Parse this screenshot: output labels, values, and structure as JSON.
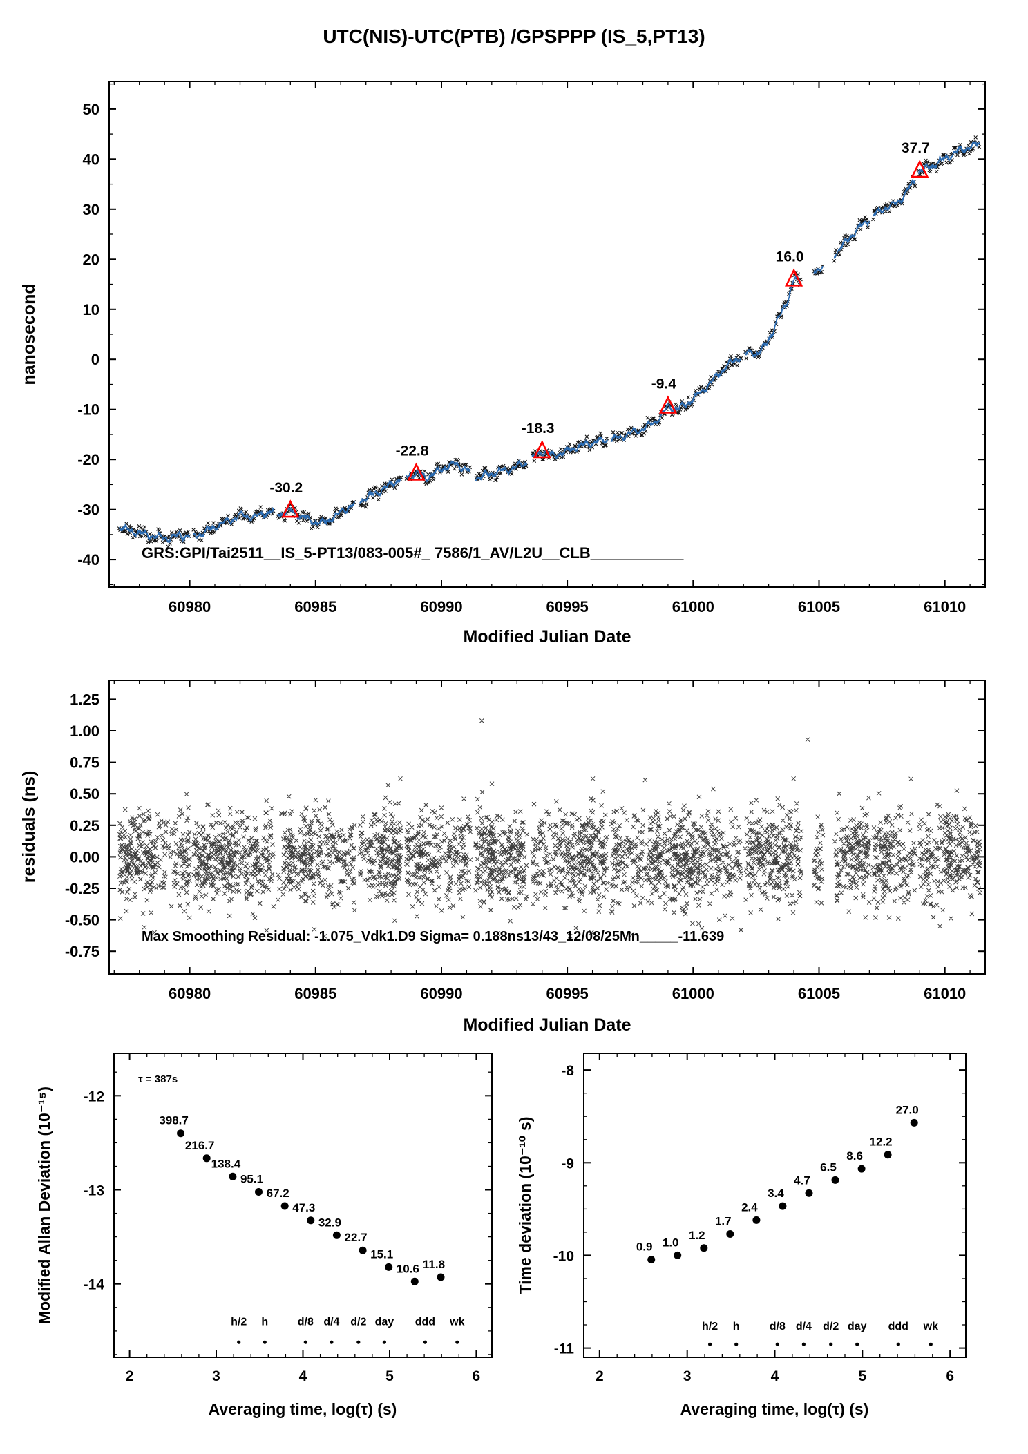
{
  "title": "UTC(NIS)-UTC(PTB)  /GPSPPP  (IS_5,PT13)",
  "chart_data": [
    {
      "type": "line",
      "panel": "top-time-difference",
      "xlabel": "Modified Julian Date",
      "ylabel": "nanosecond",
      "xlim": [
        60976.8,
        61011.6
      ],
      "ylim": [
        -45.5,
        55.5
      ],
      "xticks": [
        60980,
        60985,
        60990,
        60995,
        61000,
        61005,
        61010
      ],
      "yticks": [
        -40,
        -30,
        -20,
        -10,
        0,
        10,
        20,
        30,
        40,
        50
      ],
      "line_color": "#2b6cb3",
      "marker_color": "#111111",
      "annotation": "GRS:GPI/Tai2511__IS_5-PT13/083-005#_  7586/1_AV/L2U__CLB___________",
      "series_anchors": [
        [
          60977.2,
          -33.5
        ],
        [
          60977.6,
          -34.2
        ],
        [
          60978.1,
          -34.8
        ],
        [
          60978.6,
          -35.3
        ],
        [
          60979.1,
          -35.8
        ],
        [
          60979.6,
          -35.1
        ],
        [
          60980.1,
          -35.5
        ],
        [
          60980.6,
          -34.5
        ],
        [
          60981.1,
          -33.2
        ],
        [
          60981.6,
          -32.1
        ],
        [
          60982.1,
          -31.1
        ],
        [
          60982.5,
          -31.6
        ],
        [
          60982.9,
          -30.9
        ],
        [
          60983.3,
          -30.4
        ],
        [
          60983.7,
          -30.9
        ],
        [
          60984.0,
          -30.2
        ],
        [
          60984.4,
          -31.3
        ],
        [
          60984.9,
          -32.4
        ],
        [
          60985.3,
          -32.7
        ],
        [
          60985.8,
          -31.3
        ],
        [
          60986.3,
          -29.6
        ],
        [
          60986.8,
          -28.2
        ],
        [
          60987.3,
          -27.0
        ],
        [
          60987.8,
          -25.6
        ],
        [
          60988.2,
          -24.3
        ],
        [
          60988.6,
          -23.3
        ],
        [
          60989.0,
          -22.8
        ],
        [
          60989.4,
          -23.6
        ],
        [
          60989.8,
          -22.6
        ],
        [
          60990.2,
          -21.4
        ],
        [
          60990.6,
          -20.9
        ],
        [
          60991.0,
          -22.0
        ],
        [
          60991.4,
          -23.6
        ],
        [
          60991.8,
          -23.1
        ],
        [
          60992.3,
          -22.4
        ],
        [
          60992.8,
          -21.8
        ],
        [
          60993.3,
          -20.9
        ],
        [
          60993.7,
          -19.6
        ],
        [
          60994.0,
          -18.3
        ],
        [
          60994.4,
          -19.2
        ],
        [
          60994.8,
          -18.7
        ],
        [
          60995.3,
          -17.6
        ],
        [
          60995.8,
          -16.9
        ],
        [
          60996.3,
          -16.3
        ],
        [
          60996.8,
          -16.0
        ],
        [
          60997.3,
          -15.2
        ],
        [
          60997.8,
          -14.3
        ],
        [
          60998.3,
          -13.1
        ],
        [
          60998.7,
          -11.5
        ],
        [
          60999.0,
          -9.4
        ],
        [
          60999.4,
          -9.9
        ],
        [
          60999.8,
          -8.7
        ],
        [
          61000.3,
          -6.6
        ],
        [
          61000.8,
          -4.1
        ],
        [
          61001.2,
          -1.9
        ],
        [
          61001.6,
          -0.3
        ],
        [
          61002.0,
          0.8
        ],
        [
          61002.3,
          1.5
        ],
        [
          61002.6,
          1.1
        ],
        [
          61002.9,
          3.1
        ],
        [
          61003.2,
          6.0
        ],
        [
          61003.5,
          9.2
        ],
        [
          61003.8,
          12.5
        ],
        [
          61004.0,
          16.0
        ],
        [
          61004.3,
          15.3
        ],
        [
          61004.7,
          16.9
        ],
        [
          61005.2,
          19.0
        ],
        [
          61005.6,
          20.9
        ],
        [
          61006.0,
          23.0
        ],
        [
          61006.4,
          25.4
        ],
        [
          61006.8,
          27.2
        ],
        [
          61007.2,
          28.9
        ],
        [
          61007.6,
          30.2
        ],
        [
          61008.0,
          30.9
        ],
        [
          61008.3,
          32.3
        ],
        [
          61008.6,
          34.3
        ],
        [
          61008.8,
          35.6
        ],
        [
          61009.0,
          37.7
        ],
        [
          61009.3,
          38.2
        ],
        [
          61009.7,
          39.2
        ],
        [
          61010.0,
          40.0
        ],
        [
          61010.4,
          41.3
        ],
        [
          61010.8,
          42.1
        ],
        [
          61011.2,
          42.8
        ],
        [
          61011.4,
          43.0
        ]
      ],
      "gaps": [
        [
          60980.0,
          60980.15
        ],
        [
          60983.35,
          60983.5
        ],
        [
          60986.55,
          60986.75
        ],
        [
          60988.4,
          60988.6
        ],
        [
          60991.15,
          60991.35
        ],
        [
          60993.4,
          60993.6
        ],
        [
          60996.6,
          60996.75
        ],
        [
          61001.9,
          61002.05
        ],
        [
          61004.3,
          61004.8
        ],
        [
          61005.15,
          61005.6
        ],
        [
          61007.0,
          61007.15
        ],
        [
          61008.82,
          61008.95
        ]
      ],
      "triangles": {
        "color": "#ff0000",
        "x": [
          60984,
          60989,
          60994,
          60999,
          61004,
          61009
        ],
        "values": [
          -30.2,
          -22.8,
          -18.3,
          -9.4,
          16.0,
          37.7
        ],
        "labels": [
          "-30.2",
          "-22.8",
          "-18.3",
          "-9.4",
          "16.0",
          "37.7"
        ]
      }
    },
    {
      "type": "scatter",
      "panel": "residuals",
      "xlabel": "Modified Julian Date",
      "ylabel": "residuals (ns)",
      "xlim": [
        60976.8,
        61011.6
      ],
      "ylim": [
        -0.93,
        1.4
      ],
      "xticks": [
        60980,
        60985,
        60990,
        60995,
        61000,
        61005,
        61010
      ],
      "yticks": [
        -0.75,
        -0.5,
        -0.25,
        0,
        0.25,
        0.5,
        0.75,
        1,
        1.25
      ],
      "yticklabels": [
        "-0.75",
        "-0.50",
        "-0.25",
        "0.00",
        "0.25",
        "0.50",
        "0.75",
        "1.00",
        "1.25"
      ],
      "sigma_ns": 0.188,
      "outliers": [
        [
          60991.6,
          1.08
        ],
        [
          61004.55,
          0.93
        ]
      ],
      "gaps": [
        [
          60980.0,
          60980.15
        ],
        [
          60983.35,
          60983.5
        ],
        [
          60986.55,
          60986.75
        ],
        [
          60988.4,
          60988.6
        ],
        [
          60991.15,
          60991.35
        ],
        [
          60993.4,
          60993.6
        ],
        [
          60996.6,
          60996.75
        ],
        [
          61001.9,
          61002.05
        ],
        [
          61004.3,
          61004.8
        ],
        [
          61005.15,
          61005.6
        ],
        [
          61007.0,
          61007.15
        ],
        [
          61008.82,
          61008.95
        ]
      ],
      "annotation": "Max Smoothing Residual: -1.075_Vdk1.D9  Sigma= 0.188ns13/43_12/08/25Mn_____-11.639"
    },
    {
      "type": "scatter",
      "panel": "modified-allan-deviation",
      "xlabel": "Averaging time, log(τ) (s)",
      "ylabel": "Modified Allan Deviation (10⁻¹⁵)",
      "xlim": [
        1.82,
        6.18
      ],
      "ylim": [
        -14.78,
        -11.55
      ],
      "xticks": [
        2,
        3,
        4,
        5,
        6
      ],
      "yticks": [
        -14,
        -13,
        -12
      ],
      "tau_annotation": "τ = 387s",
      "log_tau": [
        2.59,
        2.89,
        3.19,
        3.49,
        3.79,
        4.09,
        4.39,
        4.69,
        4.99,
        5.29,
        5.59
      ],
      "values_1e15": [
        398.7,
        216.7,
        138.4,
        95.1,
        67.2,
        47.3,
        32.9,
        22.7,
        15.1,
        10.6,
        11.8
      ],
      "labels": [
        "398.7",
        "216.7",
        "138.4",
        "95.1",
        "67.2",
        "47.3",
        "32.9",
        "22.7",
        "15.1",
        "10.6",
        "11.8"
      ],
      "label_color": "#ff0000",
      "time_markers": {
        "labels": [
          "h/2",
          "h",
          "d/8",
          "d/4",
          "d/2",
          "day",
          "ddd",
          "wk"
        ],
        "log_tau": [
          3.26,
          3.56,
          4.03,
          4.33,
          4.64,
          4.94,
          5.41,
          5.78
        ],
        "dot_y": -14.62,
        "label_y": -14.44
      }
    },
    {
      "type": "scatter",
      "panel": "time-deviation",
      "xlabel": "Averaging time, log(τ) (s)",
      "ylabel": "Time deviation (10⁻¹⁰ s)",
      "xlim": [
        1.82,
        6.18
      ],
      "ylim": [
        -11.1,
        -7.82
      ],
      "xticks": [
        2,
        3,
        4,
        5,
        6
      ],
      "yticks": [
        -11,
        -10,
        -9,
        -8
      ],
      "log_tau": [
        2.59,
        2.89,
        3.19,
        3.49,
        3.79,
        4.09,
        4.39,
        4.69,
        4.99,
        5.29,
        5.59
      ],
      "values_1e10": [
        0.9,
        1.0,
        1.2,
        1.7,
        2.4,
        3.4,
        4.7,
        6.5,
        8.6,
        12.2,
        27.0
      ],
      "labels": [
        "0.9",
        "1.0",
        "1.2",
        "1.7",
        "2.4",
        "3.4",
        "4.7",
        "6.5",
        "8.6",
        "12.2",
        "27.0"
      ],
      "label_color": "#ff0000",
      "time_markers": {
        "labels": [
          "h/2",
          "h",
          "d/8",
          "d/4",
          "d/2",
          "day",
          "ddd",
          "wk"
        ],
        "log_tau": [
          3.26,
          3.56,
          4.03,
          4.33,
          4.64,
          4.94,
          5.41,
          5.78
        ],
        "dot_y": -10.96,
        "label_y": -10.8
      }
    }
  ]
}
